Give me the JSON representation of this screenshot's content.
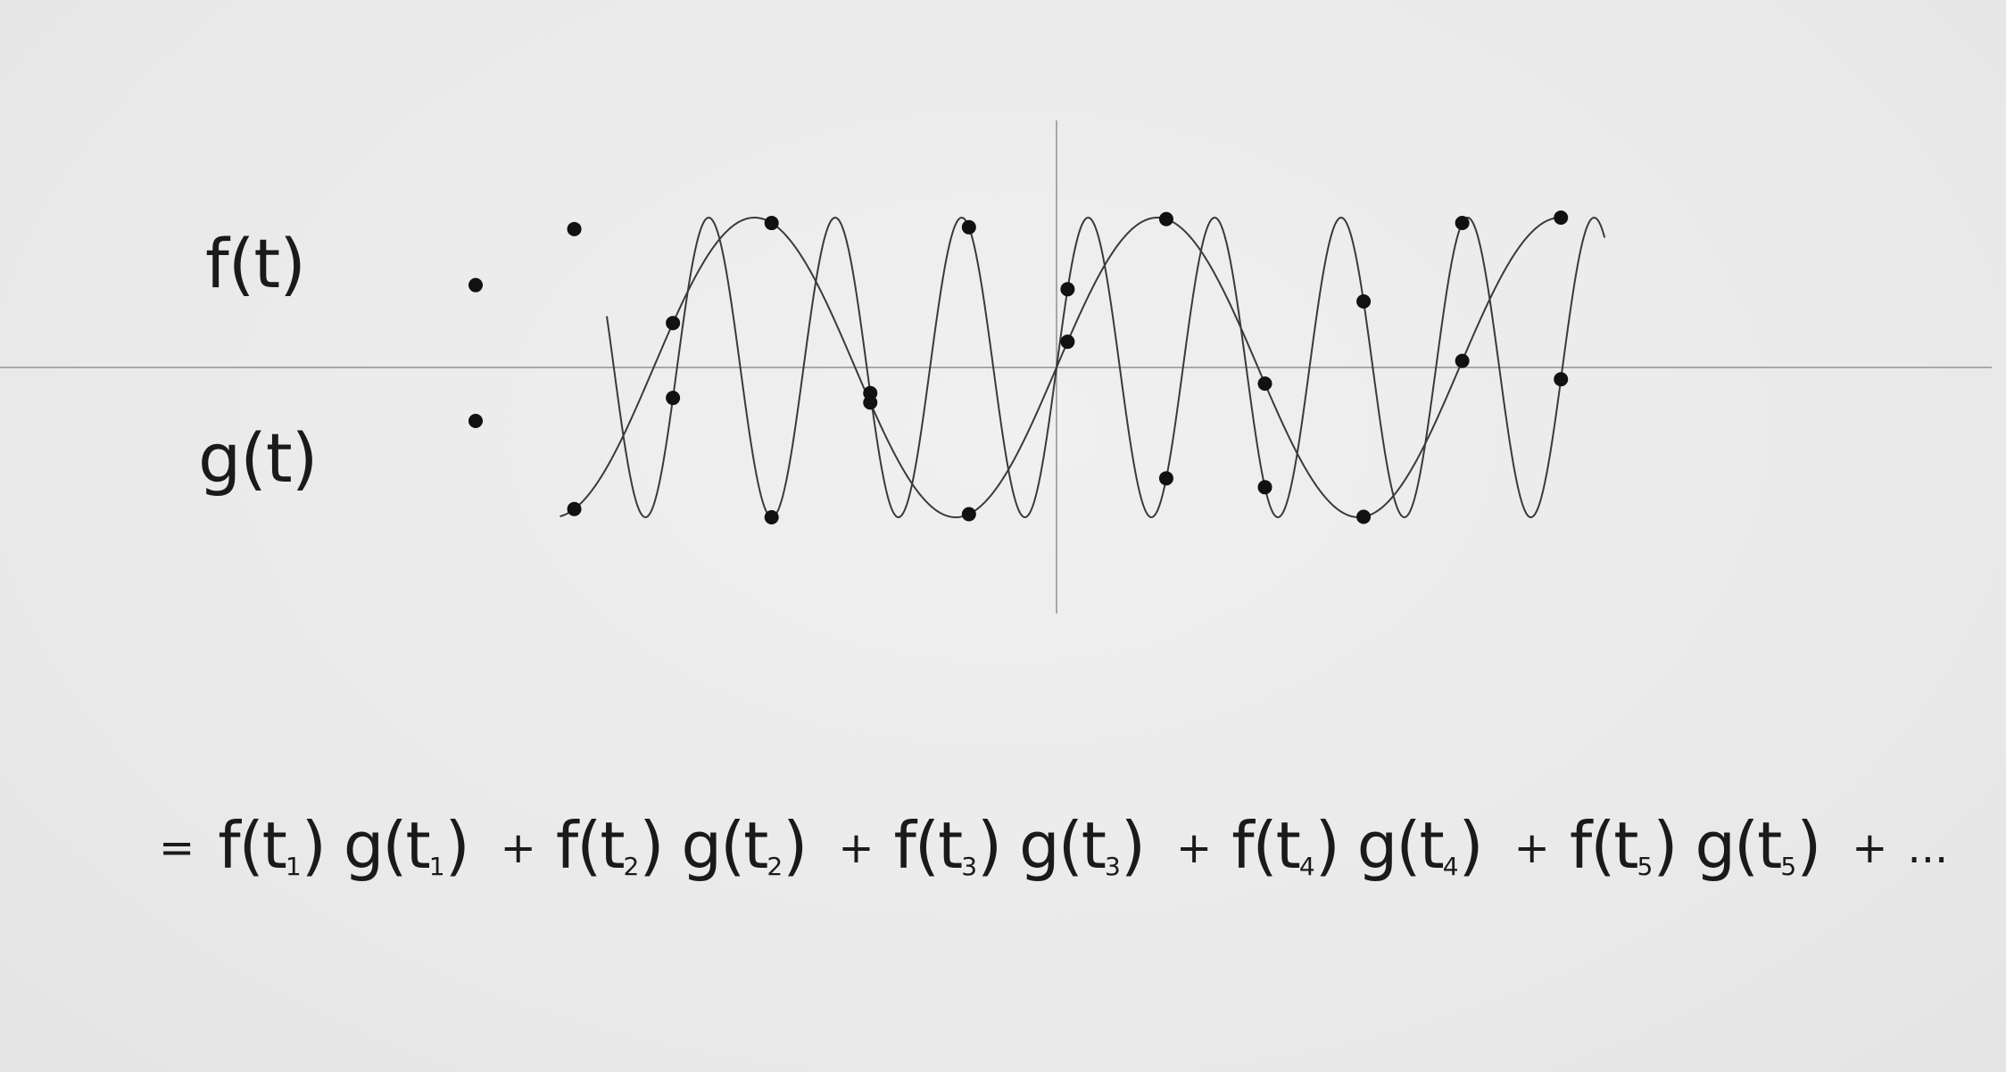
{
  "labels": {
    "f": "f(t)",
    "g": "g(t)"
  },
  "equation": {
    "equals": "=",
    "plus": "+",
    "ellipsis": "...",
    "terms": [
      {
        "f": "f(t",
        "g": "g(t",
        "sub": "1",
        "close": ")"
      },
      {
        "f": "f(t",
        "g": "g(t",
        "sub": "2",
        "close": ")"
      },
      {
        "f": "f(t",
        "g": "g(t",
        "sub": "3",
        "close": ")"
      },
      {
        "f": "f(t",
        "g": "g(t",
        "sub": "4",
        "close": ")"
      },
      {
        "f": "f(t",
        "g": "g(t",
        "sub": "5",
        "close": ")"
      }
    ]
  },
  "colors": {
    "curve": "#3a3a3a",
    "axis": "#a8a8a8",
    "dot": "#111111",
    "background": "#ececec"
  },
  "chart_data": {
    "type": "line",
    "grid": false,
    "series": [
      {
        "id": "f",
        "t_start": -4.8,
        "t_end": 5.85,
        "amplitude": 1,
        "period": 1.35
      },
      {
        "id": "g",
        "t_start": -5.3,
        "t_end": 5.45,
        "amplitude": 1,
        "period": 4.3
      }
    ],
    "sample_t": [
      -3.35,
      -1.05,
      1.05,
      3.35,
      5.45
    ]
  }
}
